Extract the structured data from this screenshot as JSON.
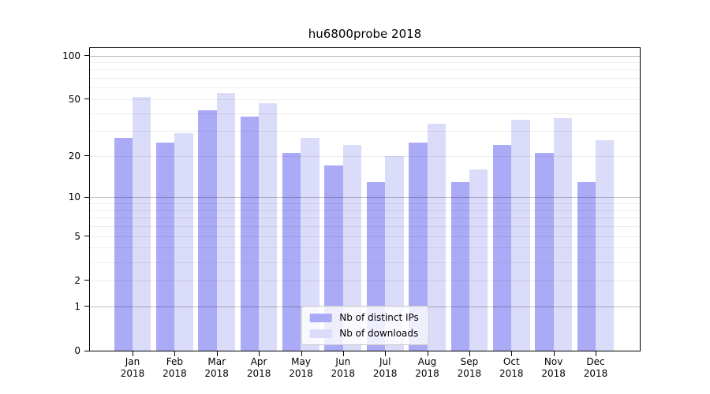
{
  "title": "hu6800probe 2018",
  "chart_data": {
    "type": "bar",
    "categories": [
      "Jan 2018",
      "Feb 2018",
      "Mar 2018",
      "Apr 2018",
      "May 2018",
      "Jun 2018",
      "Jul 2018",
      "Aug 2018",
      "Sep 2018",
      "Oct 2018",
      "Nov 2018",
      "Dec 2018"
    ],
    "series": [
      {
        "name": "Nb of distinct IPs",
        "color": "#aaaaf6",
        "values": [
          27,
          25,
          42,
          38,
          21,
          17,
          13,
          25,
          13,
          24,
          21,
          13
        ]
      },
      {
        "name": "Nb of downloads",
        "color": "#dbdbfa",
        "values": [
          52,
          29,
          55,
          47,
          27,
          24,
          20,
          34,
          16,
          36,
          37,
          26
        ]
      }
    ],
    "y_axis": {
      "scale": "log1p",
      "tick_labels": [
        "100",
        "50",
        "20",
        "10",
        "5",
        "2",
        "1",
        "0"
      ],
      "tick_values": [
        100,
        50,
        20,
        10,
        5,
        2,
        1,
        0
      ],
      "major_gridlines": [
        1,
        10,
        100
      ],
      "minor_gridlines": [
        2,
        3,
        4,
        5,
        6,
        7,
        8,
        9,
        20,
        30,
        40,
        50,
        60,
        70,
        80,
        90
      ],
      "top_value": 100
    },
    "legend": {
      "position": "lower-center"
    },
    "grid": true
  }
}
